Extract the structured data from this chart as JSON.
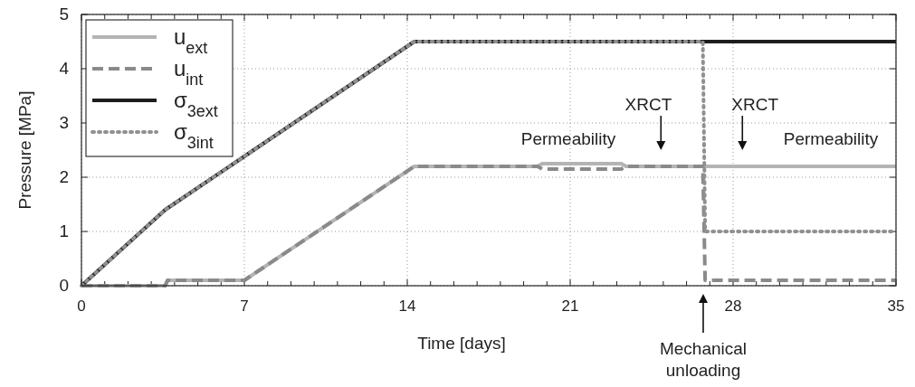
{
  "chart_data": {
    "type": "line",
    "xlabel": "Time [days]",
    "ylabel": "Pressure [MPa]",
    "xlim": [
      0,
      35
    ],
    "ylim": [
      0,
      5
    ],
    "xticks": [
      0,
      {
        "value": 1,
        "label": null
      },
      {
        "value": 2,
        "label": null
      },
      {
        "value": 3,
        "label": null
      },
      {
        "value": 4,
        "label": null
      },
      {
        "value": 5,
        "label": null
      },
      {
        "value": 6,
        "label": null
      },
      7,
      {
        "value": 8,
        "label": null
      },
      {
        "value": 9,
        "label": null
      },
      {
        "value": 10,
        "label": null
      },
      {
        "value": 11,
        "label": null
      },
      {
        "value": 12,
        "label": null
      },
      {
        "value": 13,
        "label": null
      },
      14,
      {
        "value": 15,
        "label": null
      },
      {
        "value": 16,
        "label": null
      },
      {
        "value": 17,
        "label": null
      },
      {
        "value": 18,
        "label": null
      },
      {
        "value": 19,
        "label": null
      },
      {
        "value": 20,
        "label": null
      },
      21,
      {
        "value": 22,
        "label": null
      },
      {
        "value": 23,
        "label": null
      },
      {
        "value": 24,
        "label": null
      },
      {
        "value": 25,
        "label": null
      },
      {
        "value": 26,
        "label": null
      },
      {
        "value": 27,
        "label": null
      },
      28,
      {
        "value": 29,
        "label": null
      },
      {
        "value": 30,
        "label": null
      },
      {
        "value": 31,
        "label": null
      },
      {
        "value": 32,
        "label": null
      },
      {
        "value": 33,
        "label": null
      },
      {
        "value": 34,
        "label": null
      },
      35
    ],
    "yticks": [
      0,
      1,
      2,
      3,
      4,
      5
    ],
    "grid": true,
    "legend": "top left",
    "series": [
      {
        "name": "u$_{ext}$",
        "color": "#b4b4b4",
        "line_style": "solid",
        "x": [
          0,
          3.6,
          3.7,
          7,
          14.3,
          19.6,
          19.8,
          23.2,
          23.4,
          35
        ],
        "values": [
          0,
          0,
          0.1,
          0.1,
          2.2,
          2.2,
          2.25,
          2.25,
          2.2,
          2.2
        ]
      },
      {
        "name": "u$_{int}$",
        "color": "#8a8a8a",
        "line_style": "dashed",
        "x": [
          0,
          3.6,
          3.7,
          7,
          14.3,
          19.6,
          19.8,
          23.2,
          23.4,
          26.7,
          26.8,
          35
        ],
        "values": [
          0,
          0,
          0.1,
          0.1,
          2.2,
          2.2,
          2.15,
          2.15,
          2.2,
          2.2,
          0.1,
          0.1
        ]
      },
      {
        "name": "σ$_{3ext}$",
        "color": "#1e1e1e",
        "line_style": "solid",
        "x": [
          0,
          3.6,
          14.3,
          35
        ],
        "values": [
          0,
          1.4,
          4.5,
          4.5
        ]
      },
      {
        "name": "σ$_{3int}$",
        "color": "#909090",
        "line_style": "dotted",
        "x": [
          0,
          3.6,
          14.3,
          26.7,
          26.8,
          35
        ],
        "values": [
          0,
          1.4,
          4.5,
          4.5,
          1.0,
          1.0
        ]
      }
    ],
    "annotations": [
      "Permeability",
      {
        "text": "XRCT",
        "x": 24.9,
        "y": 2.3
      },
      {
        "text": "XRCT",
        "x": 28.4,
        "y": 2.3
      },
      "Permeability",
      "Mechanical unloading"
    ]
  }
}
